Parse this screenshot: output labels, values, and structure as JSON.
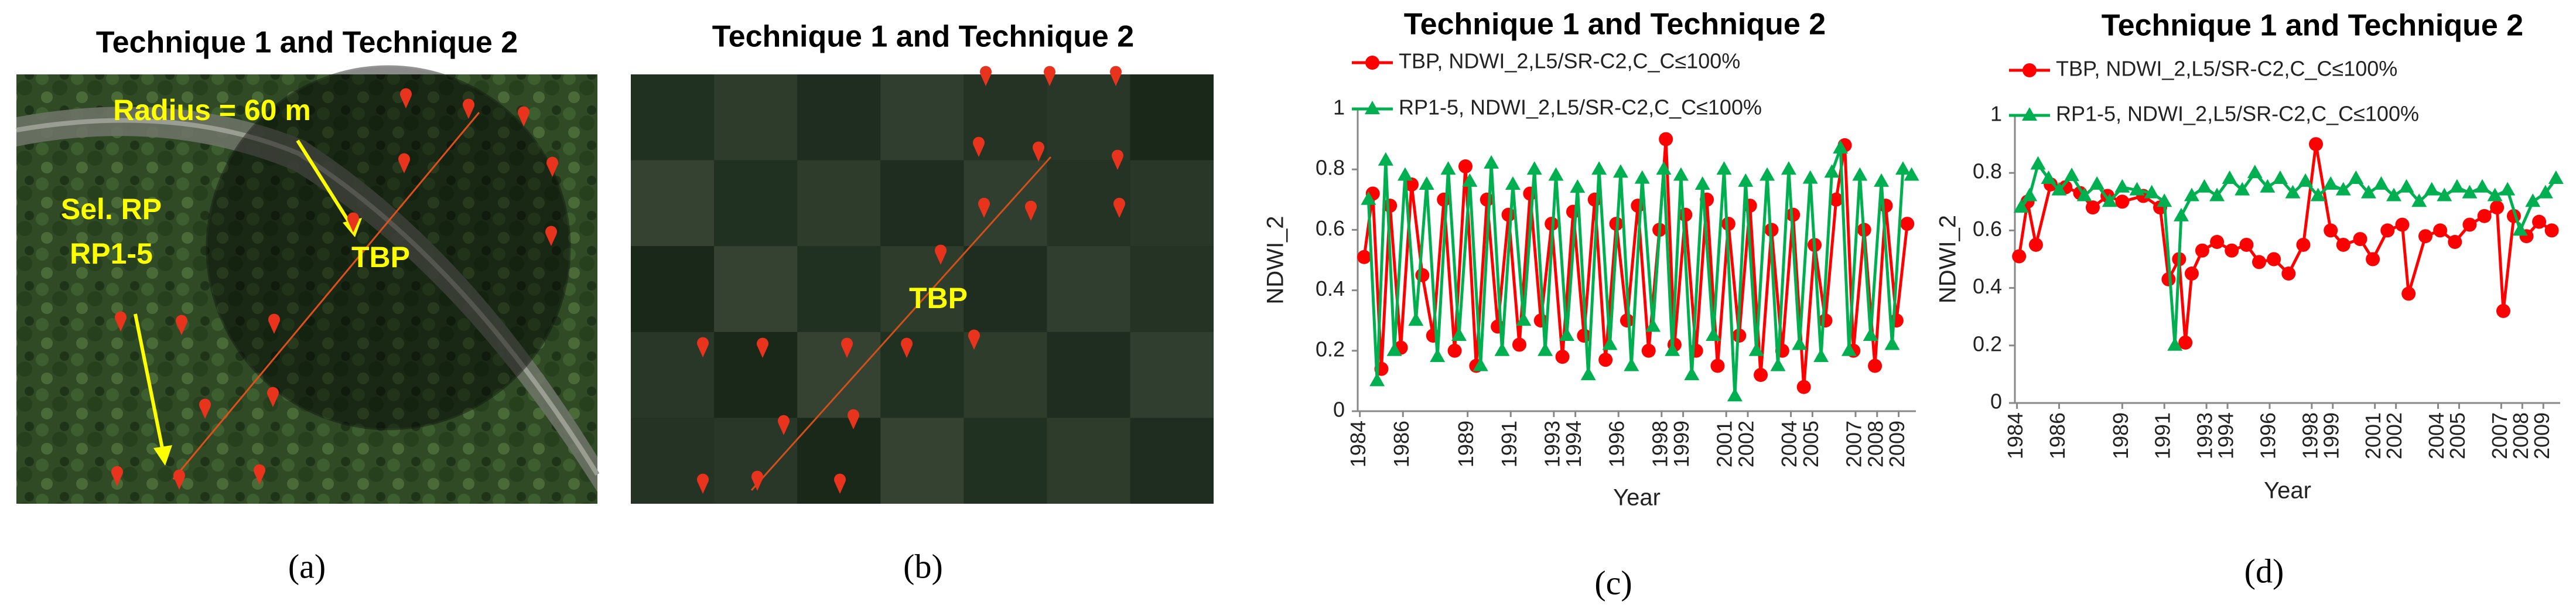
{
  "image_panels": [
    {
      "title": "Technique 1 and Technique 2",
      "labels": [
        "Radius = 60 m",
        "TBP",
        "Sel. RP",
        "RP1-5"
      ],
      "caption": "(a)"
    },
    {
      "title": "Technique 1 and Technique 2",
      "labels": [
        "TBP"
      ],
      "caption": "(b)"
    }
  ],
  "chart_data": [
    {
      "type": "line",
      "title": "Technique 1 and Technique 2",
      "x_label": "Year",
      "y_label": "NDWI_2",
      "caption": "(c)",
      "xlim": [
        1983.9,
        2009.8
      ],
      "xticks": [
        1984,
        1986,
        1989,
        1991,
        1993,
        1994,
        1996,
        1998,
        1999,
        2001,
        2002,
        2004,
        2005,
        2007,
        2008,
        2009
      ],
      "ylim": [
        0,
        1
      ],
      "yticks": [
        0,
        0.2,
        0.4,
        0.6,
        0.8,
        1
      ],
      "series": [
        {
          "name": "TBP, NDWI_2,L5/SR-C2,C_C≤100%",
          "color": "#ff0000",
          "marker": "circle",
          "x": [
            1984.2,
            1984.6,
            1985.0,
            1985.4,
            1985.9,
            1986.4,
            1986.9,
            1987.4,
            1987.9,
            1988.4,
            1988.9,
            1989.4,
            1989.9,
            1990.4,
            1990.9,
            1991.4,
            1991.9,
            1992.4,
            1992.9,
            1993.4,
            1993.9,
            1994.4,
            1994.9,
            1995.4,
            1995.9,
            1996.4,
            1996.9,
            1997.4,
            1997.9,
            1998.2,
            1998.6,
            1999.1,
            1999.6,
            2000.1,
            2000.6,
            2001.1,
            2001.6,
            2002.1,
            2002.6,
            2003.1,
            2003.6,
            2004.1,
            2004.6,
            2005.1,
            2005.6,
            2006.1,
            2006.5,
            2006.9,
            2007.4,
            2007.9,
            2008.4,
            2008.9,
            2009.4
          ],
          "values": [
            0.51,
            0.72,
            0.14,
            0.68,
            0.21,
            0.75,
            0.45,
            0.25,
            0.7,
            0.2,
            0.81,
            0.15,
            0.7,
            0.28,
            0.65,
            0.22,
            0.72,
            0.3,
            0.62,
            0.18,
            0.66,
            0.25,
            0.7,
            0.17,
            0.62,
            0.3,
            0.68,
            0.2,
            0.6,
            0.9,
            0.22,
            0.65,
            0.2,
            0.7,
            0.15,
            0.62,
            0.25,
            0.68,
            0.12,
            0.6,
            0.2,
            0.65,
            0.08,
            0.55,
            0.3,
            0.7,
            0.88,
            0.2,
            0.6,
            0.15,
            0.68,
            0.3,
            0.62
          ]
        },
        {
          "name": "RP1-5, NDWI_2,L5/SR-C2,C_C≤100%",
          "color": "#00b050",
          "marker": "triangle",
          "x": [
            1984.4,
            1984.8,
            1985.2,
            1985.6,
            1986.1,
            1986.6,
            1987.1,
            1987.6,
            1988.1,
            1988.6,
            1989.1,
            1989.6,
            1990.1,
            1990.6,
            1991.1,
            1991.6,
            1992.1,
            1992.6,
            1993.1,
            1993.6,
            1994.1,
            1994.6,
            1995.1,
            1995.6,
            1996.1,
            1996.6,
            1997.1,
            1997.6,
            1998.1,
            1998.5,
            1998.9,
            1999.4,
            1999.9,
            2000.4,
            2000.9,
            2001.4,
            2001.9,
            2002.4,
            2002.9,
            2003.4,
            2003.9,
            2004.4,
            2004.9,
            2005.4,
            2005.9,
            2006.3,
            2006.7,
            2007.2,
            2007.7,
            2008.2,
            2008.7,
            2009.2,
            2009.6
          ],
          "values": [
            0.7,
            0.1,
            0.83,
            0.2,
            0.78,
            0.3,
            0.75,
            0.18,
            0.8,
            0.25,
            0.76,
            0.15,
            0.82,
            0.2,
            0.75,
            0.3,
            0.8,
            0.2,
            0.78,
            0.25,
            0.74,
            0.12,
            0.8,
            0.22,
            0.79,
            0.15,
            0.77,
            0.28,
            0.8,
            0.2,
            0.78,
            0.12,
            0.75,
            0.25,
            0.8,
            0.05,
            0.76,
            0.2,
            0.78,
            0.15,
            0.8,
            0.22,
            0.77,
            0.18,
            0.79,
            0.87,
            0.2,
            0.78,
            0.25,
            0.76,
            0.22,
            0.8,
            0.78
          ]
        }
      ]
    },
    {
      "type": "line",
      "title": "Technique 1 and Technique 2",
      "x_label": "Year",
      "y_label": "NDWI_2",
      "caption": "(d)",
      "xlim": [
        1983.9,
        2009.8
      ],
      "xticks": [
        1984,
        1986,
        1989,
        1991,
        1993,
        1994,
        1996,
        1998,
        1999,
        2001,
        2002,
        2004,
        2005,
        2007,
        2008,
        2009
      ],
      "ylim": [
        0,
        1
      ],
      "yticks": [
        0,
        0.2,
        0.4,
        0.6,
        0.8,
        1
      ],
      "series": [
        {
          "name": "TBP, NDWI_2,L5/SR-C2,C_C≤100%",
          "color": "#ff0000",
          "marker": "circle",
          "x": [
            1984.1,
            1984.5,
            1984.9,
            1985.6,
            1986.3,
            1987.0,
            1987.6,
            1988.3,
            1989.0,
            1990.0,
            1990.8,
            1991.2,
            1991.7,
            1992.0,
            1992.3,
            1992.8,
            1993.5,
            1994.2,
            1994.9,
            1995.5,
            1996.2,
            1996.9,
            1997.6,
            1998.2,
            1998.9,
            1999.5,
            2000.3,
            2000.9,
            2001.6,
            2002.3,
            2002.6,
            2003.4,
            2004.1,
            2004.8,
            2005.5,
            2006.2,
            2006.8,
            2007.1,
            2007.6,
            2008.2,
            2008.8,
            2009.4
          ],
          "values": [
            0.51,
            0.7,
            0.55,
            0.76,
            0.75,
            0.73,
            0.68,
            0.72,
            0.7,
            0.72,
            0.68,
            0.43,
            0.5,
            0.21,
            0.45,
            0.53,
            0.56,
            0.53,
            0.55,
            0.49,
            0.5,
            0.45,
            0.55,
            0.9,
            0.6,
            0.55,
            0.57,
            0.5,
            0.6,
            0.62,
            0.38,
            0.58,
            0.6,
            0.56,
            0.62,
            0.65,
            0.68,
            0.32,
            0.65,
            0.58,
            0.63,
            0.6
          ]
        },
        {
          "name": "RP1-5, NDWI_2,L5/SR-C2,C_C≤100%",
          "color": "#00b050",
          "marker": "triangle",
          "x": [
            1984.2,
            1984.6,
            1985.0,
            1985.5,
            1986.0,
            1986.6,
            1987.2,
            1987.8,
            1988.4,
            1989.0,
            1989.7,
            1990.4,
            1991.0,
            1991.5,
            1991.8,
            1992.3,
            1992.9,
            1993.5,
            1994.1,
            1994.7,
            1995.3,
            1995.9,
            1996.5,
            1997.1,
            1997.7,
            1998.3,
            1998.9,
            1999.5,
            2000.1,
            2000.7,
            2001.3,
            2001.9,
            2002.5,
            2003.1,
            2003.7,
            2004.3,
            2004.9,
            2005.5,
            2006.1,
            2006.7,
            2007.3,
            2007.9,
            2008.5,
            2009.1,
            2009.6
          ],
          "values": [
            0.68,
            0.72,
            0.83,
            0.78,
            0.74,
            0.79,
            0.72,
            0.76,
            0.7,
            0.75,
            0.74,
            0.73,
            0.7,
            0.2,
            0.65,
            0.72,
            0.75,
            0.72,
            0.78,
            0.74,
            0.8,
            0.75,
            0.78,
            0.73,
            0.77,
            0.72,
            0.76,
            0.74,
            0.78,
            0.73,
            0.76,
            0.72,
            0.75,
            0.7,
            0.74,
            0.72,
            0.75,
            0.73,
            0.75,
            0.72,
            0.74,
            0.6,
            0.7,
            0.73,
            0.78
          ]
        }
      ]
    }
  ]
}
